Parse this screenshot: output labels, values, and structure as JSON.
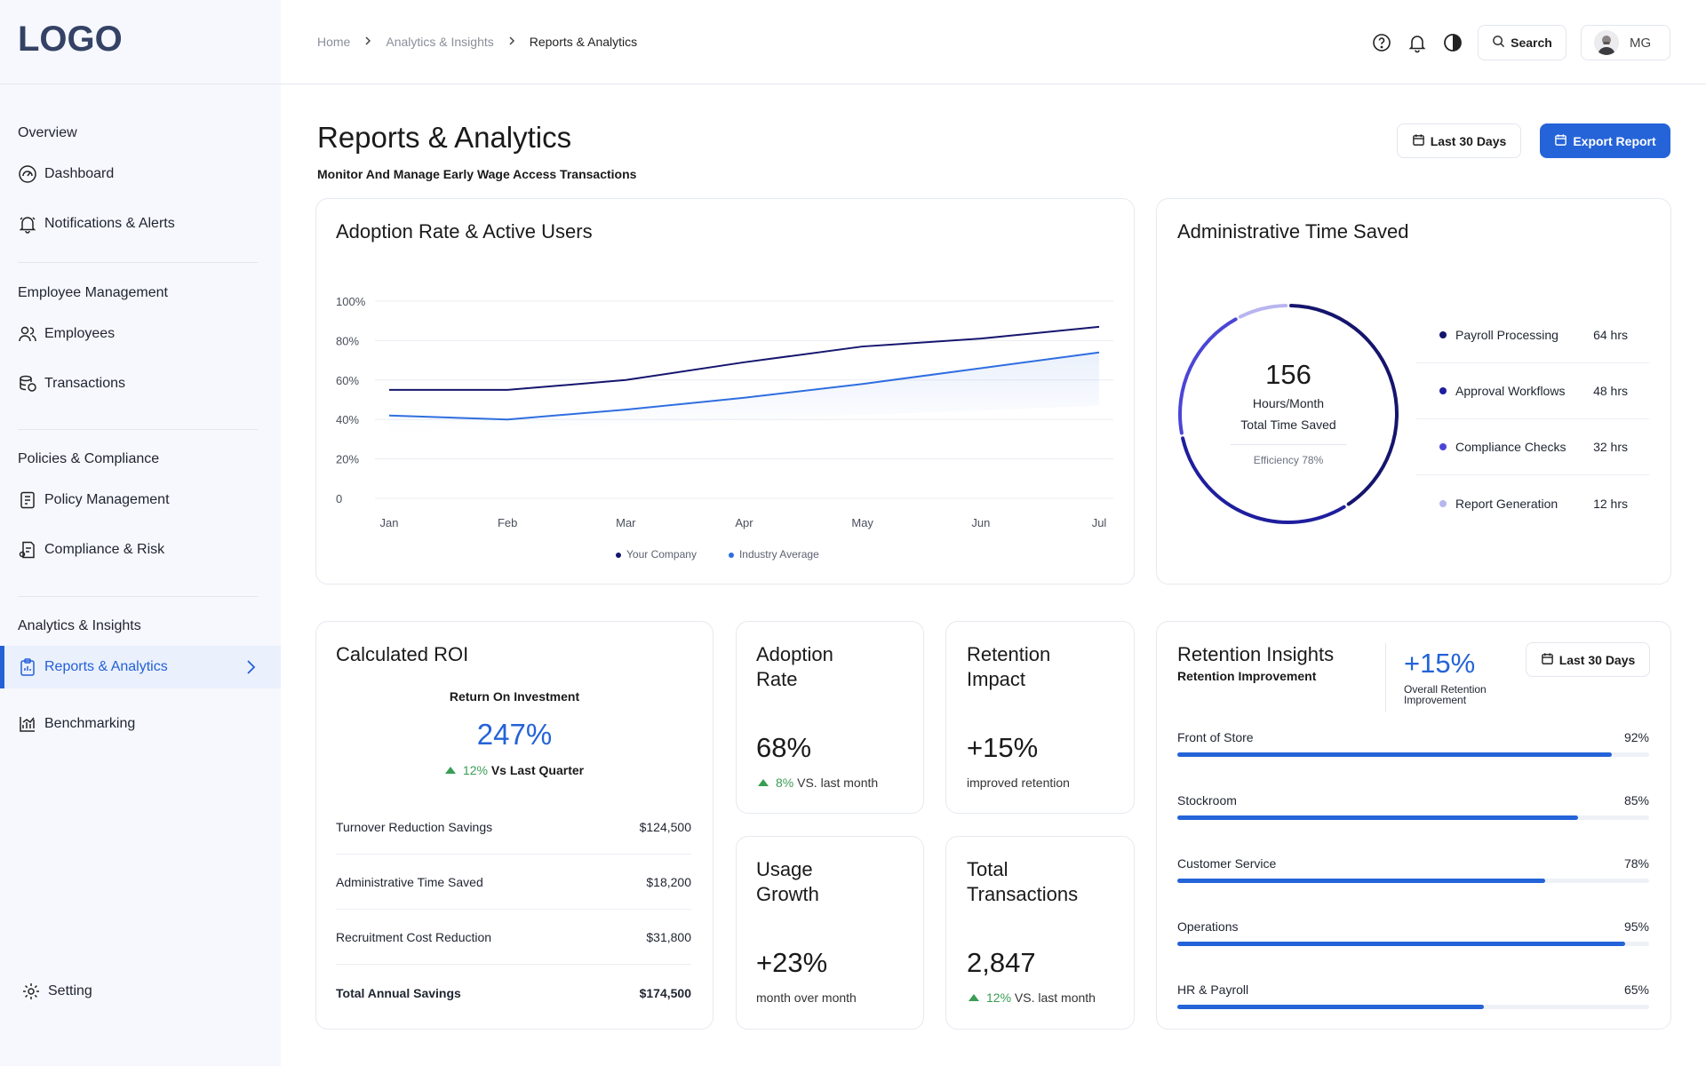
{
  "sidebar": {
    "logo": "LOGO",
    "sections": [
      {
        "label": "Overview",
        "items": [
          "Dashboard",
          "Notifications & Alerts"
        ]
      },
      {
        "label": "Employee Management",
        "items": [
          "Employees",
          "Transactions"
        ]
      },
      {
        "label": "Policies & Compliance",
        "items": [
          "Policy Management",
          "Compliance & Risk"
        ]
      },
      {
        "label": "Analytics & Insights",
        "items": [
          "Reports & Analytics",
          "Benchmarking"
        ]
      }
    ],
    "active_item": "Reports & Analytics",
    "setting": "Setting"
  },
  "topbar": {
    "breadcrumb": [
      "Home",
      "Analytics & Insights",
      "Reports & Analytics"
    ],
    "search_label": "Search",
    "user_initials": "MG",
    "icons": [
      "help-icon",
      "bell-icon",
      "contrast-icon"
    ]
  },
  "header": {
    "title": "Reports & Analytics",
    "subtitle": "Monitor And Manage Early Wage Access Transactions",
    "range_label": "Last 30 Days",
    "export_label": "Export Report"
  },
  "adoption_chart": {
    "title": "Adoption Rate & Active Users",
    "legend": [
      "Your Company",
      "Industry Average"
    ]
  },
  "chart_data": {
    "type": "line",
    "categories": [
      "Jan",
      "Feb",
      "Mar",
      "Apr",
      "May",
      "Jun",
      "Jul"
    ],
    "series": [
      {
        "name": "Your Company",
        "values": [
          55,
          55,
          60,
          69,
          77,
          81,
          87
        ],
        "color": "#15156e"
      },
      {
        "name": "Industry Average",
        "values": [
          42,
          40,
          45,
          51,
          58,
          66,
          74
        ],
        "color": "#2f6ee0"
      }
    ],
    "y_ticks": [
      "0",
      "20%",
      "40%",
      "60%",
      "80%",
      "100%"
    ],
    "ylim": [
      0,
      100
    ],
    "grid": true,
    "legend_position": "bottom"
  },
  "admin_time": {
    "title": "Administrative Time Saved",
    "total_value": "156",
    "total_unit": "Hours/Month",
    "total_label": "Total Time Saved",
    "efficiency": "Efficiency 78%",
    "efficiency_fraction": 0.78,
    "items": [
      {
        "label": "Payroll Processing",
        "value": "64 hrs",
        "hours": 64,
        "color": "#15156e"
      },
      {
        "label": "Approval Workflows",
        "value": "48 hrs",
        "hours": 48,
        "color": "#1e1e9e"
      },
      {
        "label": "Compliance Checks",
        "value": "32 hrs",
        "hours": 32,
        "color": "#4b45d6"
      },
      {
        "label": "Report Generation",
        "value": "12 hrs",
        "hours": 12,
        "color": "#b9b5f0"
      }
    ]
  },
  "roi": {
    "title": "Calculated ROI",
    "label": "Return On Investment",
    "value": "247%",
    "change": "12%",
    "change_suffix": "Vs Last Quarter",
    "rows": [
      {
        "label": "Turnover Reduction Savings",
        "value": "$124,500"
      },
      {
        "label": "Administrative Time Saved",
        "value": "$18,200"
      },
      {
        "label": "Recruitment Cost Reduction",
        "value": "$31,800"
      },
      {
        "label": "Total Annual Savings",
        "value": "$174,500"
      }
    ]
  },
  "metrics": {
    "adoption": {
      "title_1": "Adoption",
      "title_2": "Rate",
      "value": "68%",
      "change": "8%",
      "suffix": "VS. last month"
    },
    "retention": {
      "title_1": "Retention",
      "title_2": "Impact",
      "value": "+15%",
      "sub": "improved retention"
    },
    "usage": {
      "title_1": "Usage",
      "title_2": "Growth",
      "value": "+23%",
      "sub": "month over month"
    },
    "transactions": {
      "title_1": "Total",
      "title_2": "Transactions",
      "value": "2,847",
      "change": "12%",
      "suffix": "VS. last month"
    }
  },
  "retention_insights": {
    "title": "Retention Insights",
    "subtitle": "Retention Improvement",
    "overall_value": "+15%",
    "overall_label_1": "Overall Retention",
    "overall_label_2": "Improvement",
    "range_label": "Last 30 Days",
    "bars": [
      {
        "label": "Front of Store",
        "value": "92%",
        "fraction": 0.92
      },
      {
        "label": "Stockroom",
        "value": "85%",
        "fraction": 0.85
      },
      {
        "label": "Customer Service",
        "value": "78%",
        "fraction": 0.78
      },
      {
        "label": "Operations",
        "value": "95%",
        "fraction": 0.95
      },
      {
        "label": "HR & Payroll",
        "value": "65%",
        "fraction": 0.65
      }
    ]
  }
}
